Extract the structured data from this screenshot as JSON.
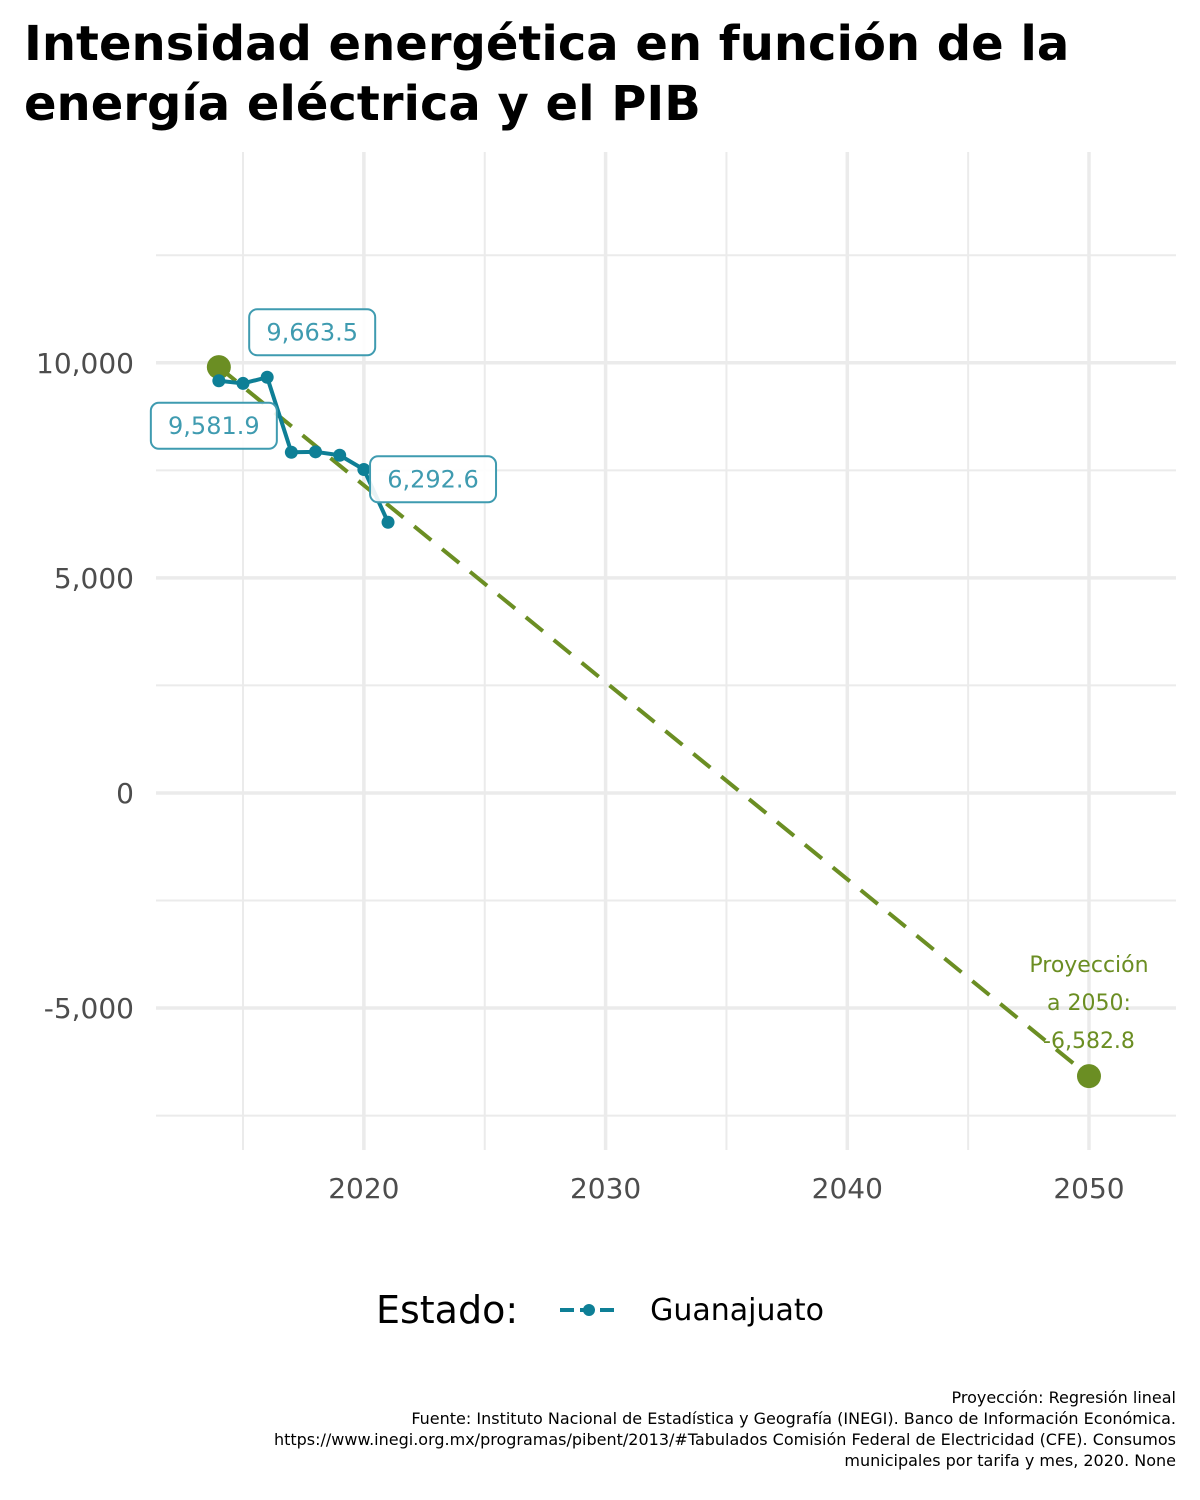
{
  "title": "Intensidad energética en función de la energía eléctrica y el PIB",
  "legend": {
    "title": "Estado:",
    "label": "Guanajuato"
  },
  "caption": [
    "Proyección: Regresión lineal",
    "Fuente: Instituto Nacional de Estadística y Geografía (INEGI). Banco de Información Económica.",
    "https://www.inegi.org.mx/programas/pibent/2013/#Tabulados Comisión Federal de Electricidad (CFE). Consumos",
    "municipales por tarifa y mes, 2020. None"
  ],
  "colors": {
    "series": "#0e7f96",
    "projection": "#6b8e23",
    "label": "#3f9bb0",
    "grid": "#ebebeb"
  },
  "chart_data": {
    "type": "line",
    "title": "Intensidad energética en función de la energía eléctrica y el PIB",
    "xlabel": "",
    "ylabel": "",
    "xlim": [
      2011.4,
      2053.6
    ],
    "ylim": [
      -8300,
      14900
    ],
    "x_ticks": [
      2020,
      2030,
      2040,
      2050
    ],
    "x_tick_labels": [
      "2020",
      "2030",
      "2040",
      "2050"
    ],
    "y_ticks": [
      -5000,
      0,
      5000,
      10000
    ],
    "y_tick_labels": [
      "-5,000",
      "0",
      "5,000",
      "10,000"
    ],
    "grid": true,
    "legend_position": "bottom",
    "series": [
      {
        "name": "Guanajuato",
        "x": [
          2014,
          2015,
          2016,
          2017,
          2018,
          2019,
          2020,
          2021
        ],
        "values": [
          9581.9,
          9520,
          9663.5,
          7920,
          7930,
          7850,
          7520,
          6292.6
        ],
        "labels": [
          {
            "x": 2016,
            "y": 9663.5,
            "text": "9,663.5"
          },
          {
            "x": 2014,
            "y": 9581.9,
            "text": "9,581.9"
          },
          {
            "x": 2021,
            "y": 6292.6,
            "text": "6,292.6"
          }
        ]
      }
    ],
    "projection": {
      "x": [
        2014,
        2050
      ],
      "values": [
        9900,
        -6582.8
      ],
      "annotation": [
        "Proyección",
        "a 2050:",
        "-6,582.8"
      ]
    }
  }
}
